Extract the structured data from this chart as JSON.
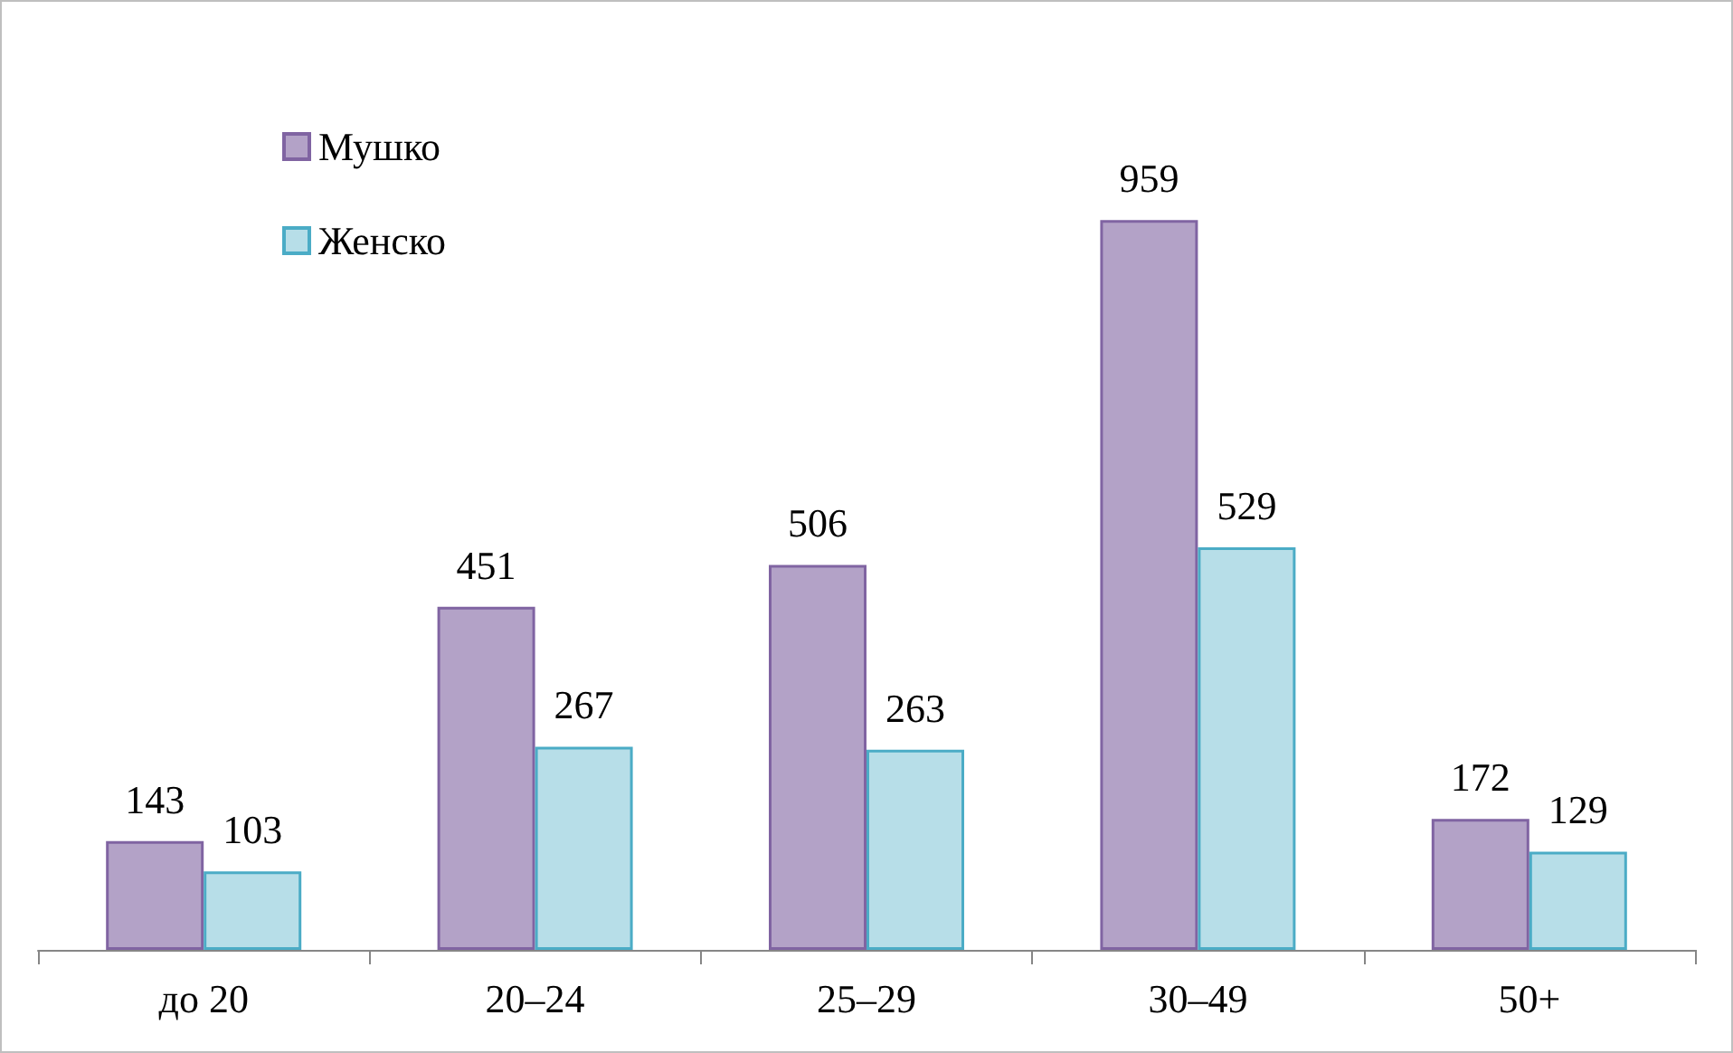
{
  "chart_data": {
    "type": "bar",
    "categories": [
      "до 20",
      "20–24",
      "25–29",
      "30–49",
      "50+"
    ],
    "series": [
      {
        "name": "Мушко",
        "color": "#b3a2c7",
        "values": [
          143,
          451,
          506,
          959,
          172
        ]
      },
      {
        "name": "Женско",
        "color": "#b7dee8",
        "values": [
          103,
          267,
          263,
          529,
          129
        ]
      }
    ],
    "tick_labels": "x",
    "data_labels": true,
    "legend": "top left"
  }
}
